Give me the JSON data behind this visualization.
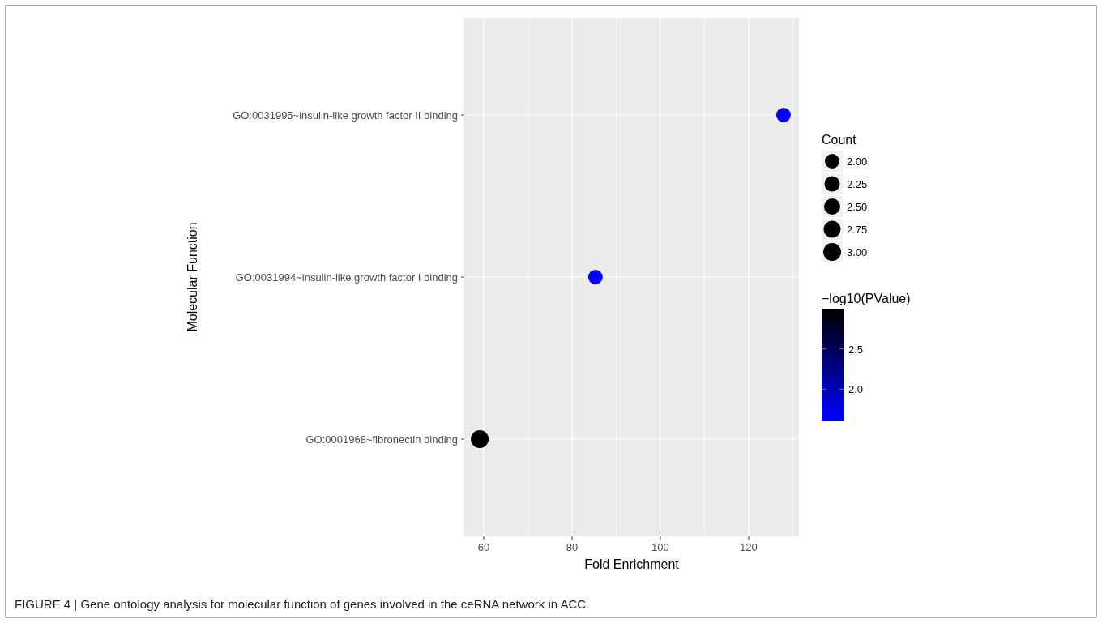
{
  "chart_data": {
    "type": "bubble",
    "orientation": "horizontal",
    "categories": [
      "GO:0031995~insulin-like growth factor II binding",
      "GO:0031994~insulin-like growth factor I binding",
      "GO:0001968~fibronectin binding"
    ],
    "values": [
      127.9,
      85.3,
      59.1
    ],
    "sizes": [
      2,
      2,
      3
    ],
    "size_legend": [
      {
        "value": 2,
        "label": "2.00"
      },
      {
        "value": 2.25,
        "label": "2.25"
      },
      {
        "value": 2.5,
        "label": "2.50"
      },
      {
        "value": 2.75,
        "label": "2.75"
      },
      {
        "value": 3,
        "label": "3.00"
      }
    ],
    "cvalues": [
      1.6,
      1.6,
      3.0
    ],
    "clim": [
      1.6,
      3.0
    ],
    "cticks": [
      {
        "value": 2,
        "label": "2.0"
      },
      2.5
    ],
    "xlim": [
      55.6,
      131.4
    ],
    "xticks": [
      60,
      80,
      100,
      120
    ],
    "xlabel": "Fold Enrichment",
    "ylabel": "Molecular Function",
    "legend_title": "Count",
    "clabel": "−log10(PValue)",
    "grid": true,
    "annotations": [
      "FIGURE 4 | Gene ontology analysis for molecular function of genes involved in the ceRNA network in ACC."
    ]
  }
}
